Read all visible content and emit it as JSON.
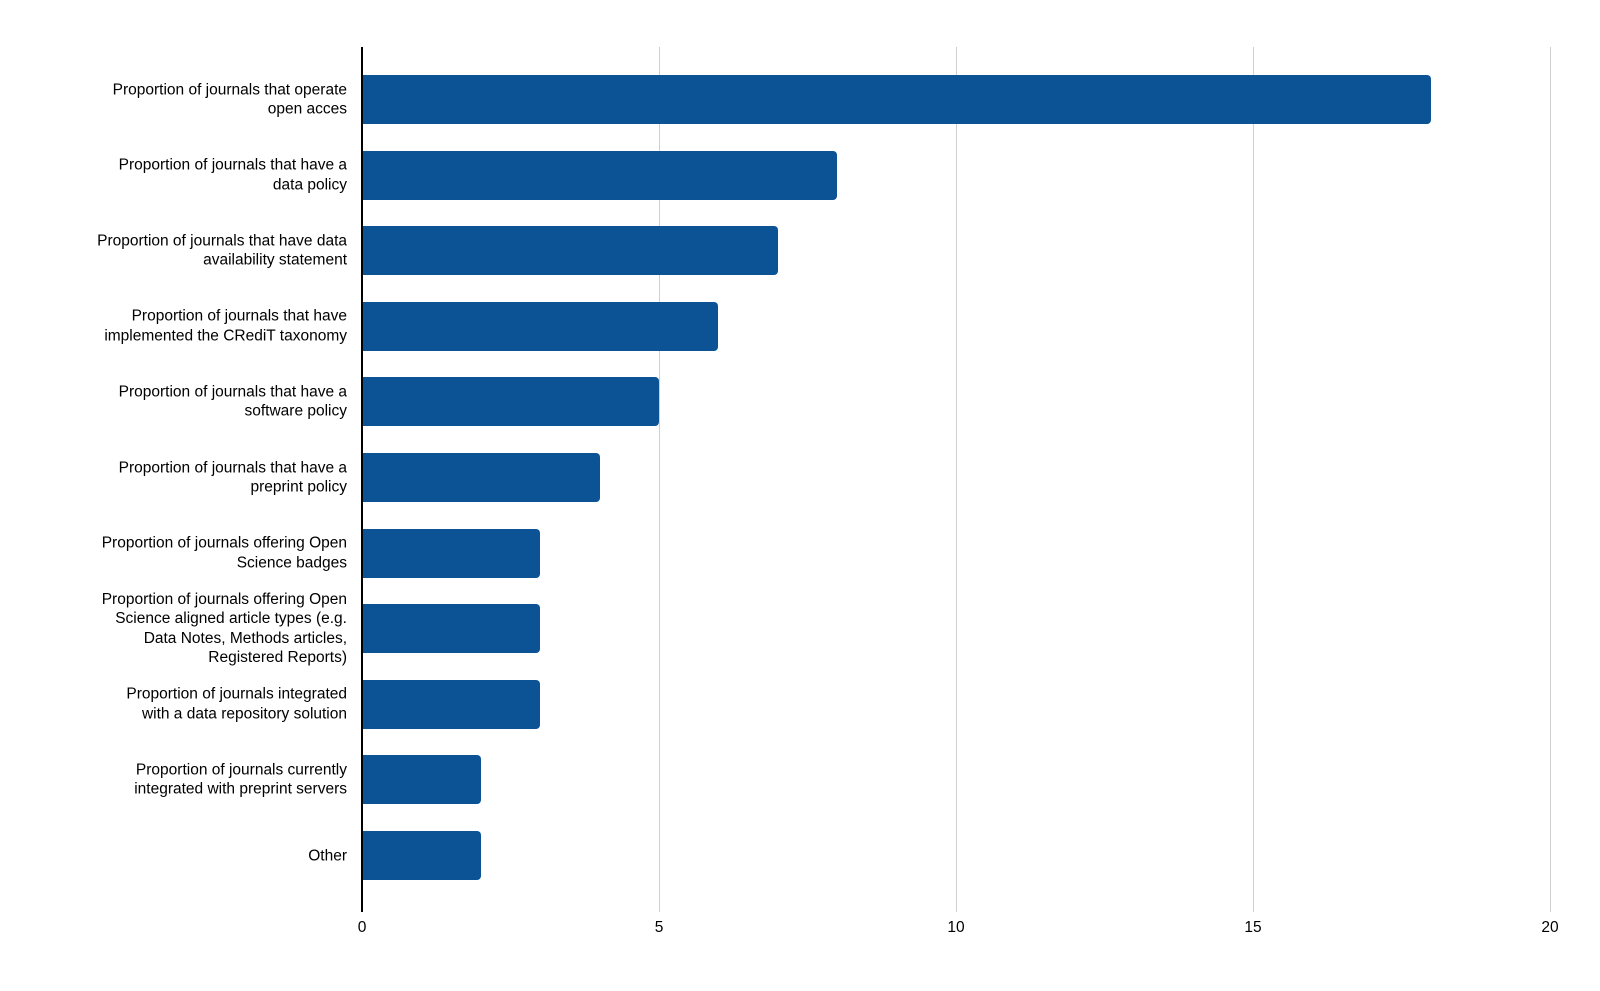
{
  "chart_data": {
    "type": "bar",
    "orientation": "horizontal",
    "title": "",
    "xlabel": "",
    "ylabel": "",
    "xlim": [
      0,
      20
    ],
    "x_ticks": [
      "0",
      "5",
      "10",
      "15",
      "20"
    ],
    "grid": true,
    "legend_position": "none",
    "categories": [
      "Proportion of journals that operate open acces",
      "Proportion of journals that have a data policy",
      "Proportion of journals that have data availability statement",
      "Proportion of journals that have implemented the CRediT taxonomy",
      "Proportion of journals that have a software policy",
      "Proportion of journals that have a preprint policy",
      "Proportion of journals offering Open Science badges",
      "Proportion of journals offering Open Science aligned article types (e.g. Data Notes, Methods articles, Registered Reports)",
      "Proportion of journals integrated with a data repository solution",
      "Proportion of journals currently integrated with preprint servers",
      "Other"
    ],
    "label_lines": [
      [
        "Proportion of journals that operate",
        "open acces"
      ],
      [
        "Proportion of journals that have a",
        "data policy"
      ],
      [
        "Proportion of journals that have data",
        "availability statement"
      ],
      [
        "Proportion of journals that have",
        "implemented the CRediT taxonomy"
      ],
      [
        "Proportion of journals that have a",
        "software policy"
      ],
      [
        "Proportion of journals that have a",
        "preprint policy"
      ],
      [
        "Proportion of journals offering Open",
        "Science badges"
      ],
      [
        "Proportion of journals offering Open",
        "Science aligned article types (e.g.",
        "Data Notes, Methods articles,",
        "Registered Reports)"
      ],
      [
        "Proportion of journals integrated",
        "with a data repository solution"
      ],
      [
        "Proportion of journals currently",
        "integrated with preprint servers"
      ],
      [
        "Other"
      ]
    ],
    "values": [
      18,
      8,
      7,
      6,
      5,
      4,
      3,
      3,
      3,
      2,
      2
    ],
    "colors": {
      "bar": "#0b5394",
      "axis": "#000000",
      "gridline": "#d0d0d0",
      "text": "#000000",
      "background": "#ffffff"
    }
  }
}
